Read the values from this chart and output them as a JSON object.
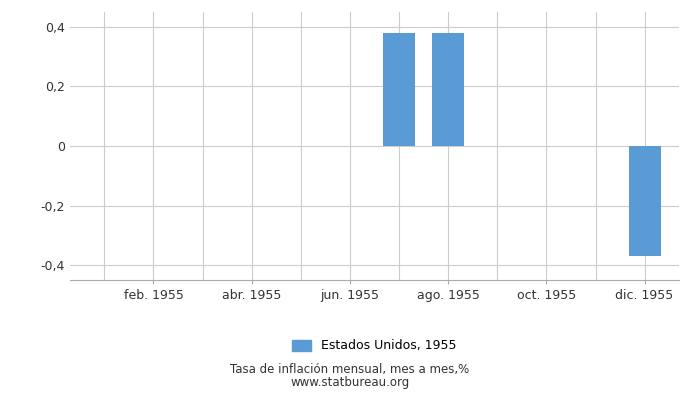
{
  "months": [
    1,
    2,
    3,
    4,
    5,
    6,
    7,
    8,
    9,
    10,
    11,
    12
  ],
  "values": [
    0,
    0,
    0,
    0,
    0,
    0,
    0.38,
    0.38,
    0,
    0,
    0,
    -0.37
  ],
  "bar_color": "#5B9BD5",
  "ylim": [
    -0.45,
    0.45
  ],
  "yticks": [
    -0.4,
    -0.2,
    0,
    0.2,
    0.4
  ],
  "xtick_positions": [
    2,
    4,
    6,
    8,
    10,
    12
  ],
  "xtick_labels": [
    "feb. 1955",
    "abr. 1955",
    "jun. 1955",
    "ago. 1955",
    "oct. 1955",
    "dic. 1955"
  ],
  "xgrid_positions": [
    1,
    2,
    3,
    4,
    5,
    6,
    7,
    8,
    9,
    10,
    11,
    12
  ],
  "legend_label": "Estados Unidos, 1955",
  "subtitle": "Tasa de inflación mensual, mes a mes,%",
  "source": "www.statbureau.org",
  "background_color": "#ffffff",
  "grid_color": "#cccccc",
  "text_color": "#333333",
  "bar_width": 0.65
}
